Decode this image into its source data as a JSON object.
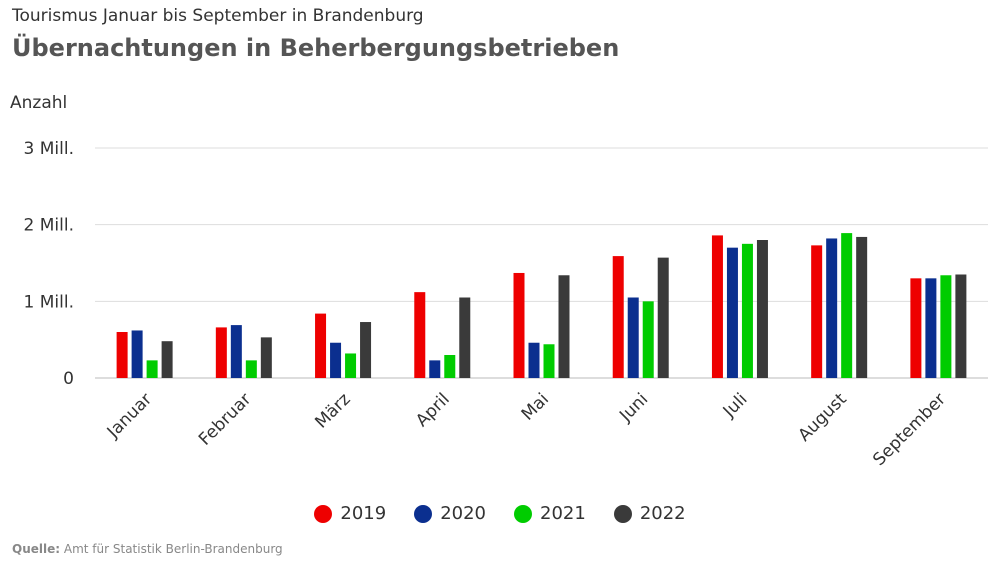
{
  "header": {
    "subtitle": "Tourismus Januar bis September in Brandenburg",
    "title": "Übernachtungen in Beherbergungsbetrieben"
  },
  "footer": {
    "source_label": "Quelle:",
    "source_text": "Amt für Statistik Berlin-Brandenburg"
  },
  "chart_data": {
    "type": "bar",
    "title": "Übernachtungen in Beherbergungsbetrieben",
    "ylabel": "Anzahl",
    "xlabel": "",
    "ylim": [
      0,
      3000000
    ],
    "yticks": [
      {
        "value": 0,
        "label": "0"
      },
      {
        "value": 1000000,
        "label": "1 Mill."
      },
      {
        "value": 2000000,
        "label": "2 Mill."
      },
      {
        "value": 3000000,
        "label": "3 Mill."
      }
    ],
    "grid": true,
    "legend_position": "bottom",
    "categories": [
      "Januar",
      "Februar",
      "März",
      "April",
      "Mai",
      "Juni",
      "Juli",
      "August",
      "September"
    ],
    "series": [
      {
        "name": "2019",
        "color": "#ee0000",
        "values": [
          600000,
          660000,
          840000,
          1120000,
          1370000,
          1590000,
          1860000,
          1730000,
          1300000
        ]
      },
      {
        "name": "2020",
        "color": "#0b2f8f",
        "values": [
          620000,
          690000,
          460000,
          230000,
          460000,
          1050000,
          1700000,
          1820000,
          1300000
        ]
      },
      {
        "name": "2021",
        "color": "#00cc00",
        "values": [
          230000,
          230000,
          320000,
          300000,
          440000,
          1000000,
          1750000,
          1890000,
          1340000
        ]
      },
      {
        "name": "2022",
        "color": "#3a3a3a",
        "values": [
          480000,
          530000,
          730000,
          1050000,
          1340000,
          1570000,
          1800000,
          1840000,
          1350000
        ]
      }
    ]
  }
}
